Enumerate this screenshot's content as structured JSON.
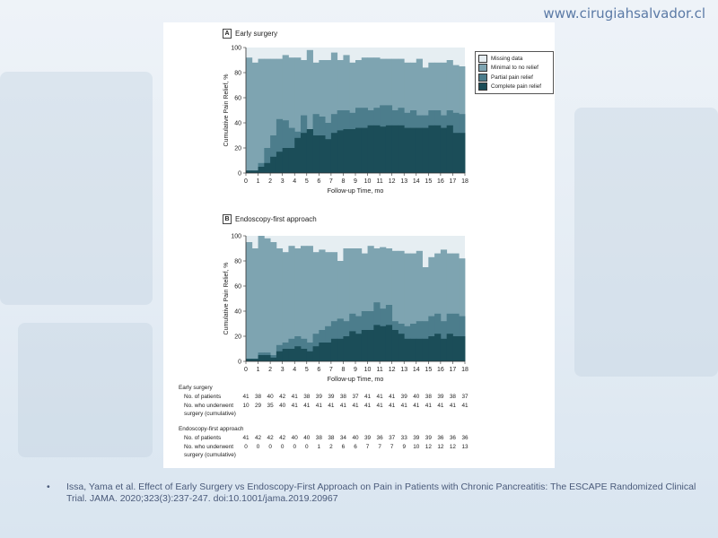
{
  "site_url": "www.cirugiahsalvador.cl",
  "citation": "Issa, Yama et al. Effect of Early Surgery vs Endoscopy-First Approach on Pain in Patients with Chronic Pancreatitis: The ESCAPE Randomized Clinical Trial. JAMA. 2020;323(3):237-247.  doi:10.1001/jama.2019.20967",
  "citation_bullet": "•",
  "legend": [
    {
      "label": "Missing data",
      "color": "#e6eef2"
    },
    {
      "label": "Minimal to no relief",
      "color": "#7ea4b1"
    },
    {
      "label": "Partial pain relief",
      "color": "#4c7d8c"
    },
    {
      "label": "Complete pain relief",
      "color": "#1b4d58"
    }
  ],
  "chart_data": [
    {
      "type": "area",
      "panel_letter": "A",
      "title": "Early surgery",
      "xlabel": "Follow-up Time, mo",
      "ylabel": "Cumulative Pain Relief, %",
      "xlim": [
        0,
        18
      ],
      "ylim": [
        0,
        100
      ],
      "x_ticks": [
        0,
        1,
        2,
        3,
        4,
        5,
        6,
        7,
        8,
        9,
        10,
        11,
        12,
        13,
        14,
        15,
        16,
        17,
        18
      ],
      "y_ticks": [
        0,
        20,
        40,
        60,
        80,
        100
      ],
      "interval_start": [
        0,
        0.5,
        1,
        1.5,
        2,
        2.5,
        3,
        3.5,
        4,
        4.5,
        5,
        5.5,
        6,
        6.5,
        7,
        7.5,
        8,
        8.5,
        9,
        9.5,
        10,
        10.5,
        11,
        11.5,
        12,
        12.5,
        13,
        13.5,
        14,
        14.5,
        15,
        15.5,
        16,
        16.5,
        17,
        17.5
      ],
      "series": [
        {
          "name": "Complete pain relief",
          "values": [
            2,
            2,
            5,
            8,
            13,
            17,
            20,
            20,
            28,
            32,
            35,
            30,
            30,
            27,
            32,
            34,
            35,
            35,
            36,
            36,
            38,
            38,
            37,
            38,
            38,
            38,
            36,
            36,
            36,
            36,
            38,
            38,
            36,
            38,
            32,
            32
          ]
        },
        {
          "name": "Partial pain relief",
          "values": [
            2,
            2,
            8,
            20,
            30,
            43,
            42,
            36,
            33,
            46,
            35,
            47,
            45,
            40,
            47,
            50,
            50,
            48,
            52,
            52,
            50,
            52,
            54,
            54,
            50,
            52,
            48,
            50,
            46,
            46,
            50,
            50,
            46,
            50,
            48,
            47
          ]
        },
        {
          "name": "Minimal to no relief",
          "values": [
            92,
            88,
            91,
            91,
            91,
            91,
            94,
            92,
            92,
            90,
            98,
            88,
            90,
            90,
            96,
            90,
            94,
            88,
            90,
            92,
            92,
            92,
            91,
            91,
            91,
            91,
            88,
            88,
            91,
            84,
            88,
            88,
            88,
            90,
            86,
            85
          ]
        }
      ]
    },
    {
      "type": "area",
      "panel_letter": "B",
      "title": "Endoscopy-first approach",
      "xlabel": "Follow-up Time, mo",
      "ylabel": "Cumulative Pain Relief, %",
      "xlim": [
        0,
        18
      ],
      "ylim": [
        0,
        100
      ],
      "x_ticks": [
        0,
        1,
        2,
        3,
        4,
        5,
        6,
        7,
        8,
        9,
        10,
        11,
        12,
        13,
        14,
        15,
        16,
        17,
        18
      ],
      "y_ticks": [
        0,
        20,
        40,
        60,
        80,
        100
      ],
      "interval_start": [
        0,
        0.5,
        1,
        1.5,
        2,
        2.5,
        3,
        3.5,
        4,
        4.5,
        5,
        5.5,
        6,
        6.5,
        7,
        7.5,
        8,
        8.5,
        9,
        9.5,
        10,
        10.5,
        11,
        11.5,
        12,
        12.5,
        13,
        13.5,
        14,
        14.5,
        15,
        15.5,
        16,
        16.5,
        17,
        17.5
      ],
      "series": [
        {
          "name": "Complete pain relief",
          "values": [
            2,
            2,
            5,
            5,
            3,
            8,
            10,
            10,
            12,
            10,
            8,
            12,
            15,
            15,
            18,
            18,
            20,
            24,
            22,
            25,
            25,
            29,
            28,
            29,
            25,
            22,
            18,
            18,
            18,
            18,
            20,
            22,
            18,
            22,
            20,
            20
          ]
        },
        {
          "name": "Partial pain relief",
          "values": [
            2,
            2,
            7,
            7,
            5,
            13,
            15,
            18,
            20,
            18,
            15,
            22,
            25,
            28,
            32,
            34,
            32,
            38,
            36,
            40,
            40,
            47,
            42,
            45,
            32,
            30,
            28,
            30,
            32,
            32,
            36,
            38,
            32,
            38,
            38,
            36
          ]
        },
        {
          "name": "Minimal to no relief",
          "values": [
            95,
            90,
            100,
            98,
            95,
            90,
            87,
            92,
            90,
            92,
            92,
            87,
            89,
            87,
            87,
            80,
            90,
            90,
            90,
            86,
            92,
            90,
            91,
            90,
            88,
            88,
            86,
            86,
            88,
            75,
            83,
            86,
            89,
            86,
            86,
            82
          ]
        }
      ]
    }
  ],
  "risk_table": {
    "groups": [
      {
        "name": "Early surgery",
        "rows": [
          {
            "label": "No. of patients",
            "values": [
              "41",
              "38",
              "40",
              "42",
              "41",
              "38",
              "39",
              "39",
              "38",
              "37",
              "41",
              "41",
              "41",
              "39",
              "40",
              "38",
              "39",
              "38",
              "37"
            ]
          },
          {
            "label": "No. who underwent",
            "label_cont": "surgery (cumulative)",
            "values": [
              "10",
              "29",
              "35",
              "40",
              "41",
              "41",
              "41",
              "41",
              "41",
              "41",
              "41",
              "41",
              "41",
              "41",
              "41",
              "41",
              "41",
              "41",
              "41"
            ]
          }
        ]
      },
      {
        "name": "Endoscopy-first approach",
        "rows": [
          {
            "label": "No. of patients",
            "values": [
              "41",
              "42",
              "42",
              "42",
              "40",
              "40",
              "38",
              "38",
              "34",
              "40",
              "39",
              "36",
              "37",
              "33",
              "39",
              "39",
              "36",
              "36",
              "36"
            ]
          },
          {
            "label": "No. who underwent",
            "label_cont": "surgery (cumulative)",
            "values": [
              "0",
              "0",
              "0",
              "0",
              "0",
              "0",
              "1",
              "2",
              "6",
              "6",
              "7",
              "7",
              "7",
              "9",
              "10",
              "12",
              "12",
              "12",
              "13"
            ]
          }
        ]
      }
    ]
  }
}
